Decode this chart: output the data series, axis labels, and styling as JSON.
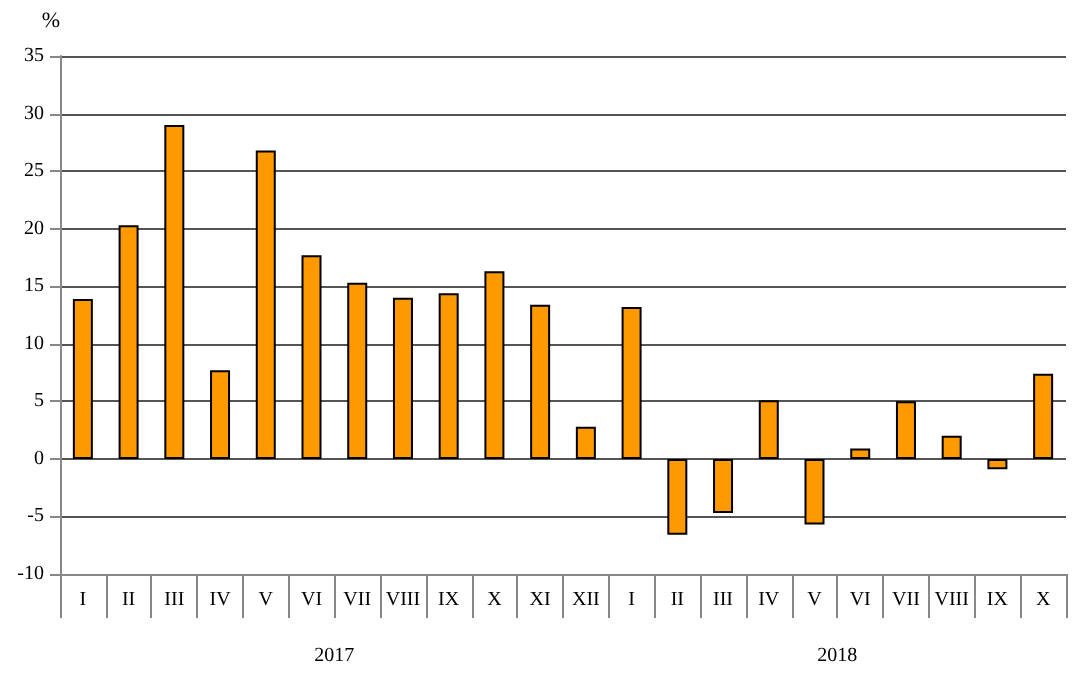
{
  "chart_data": {
    "type": "bar",
    "ylabel": "%",
    "categories": [
      "I",
      "II",
      "III",
      "IV",
      "V",
      "VI",
      "VII",
      "VIII",
      "IX",
      "X",
      "XI",
      "XII",
      "I",
      "II",
      "III",
      "IV",
      "V",
      "VI",
      "VII",
      "VIII",
      "IX",
      "X"
    ],
    "values": [
      13.9,
      20.3,
      29.0,
      7.7,
      26.8,
      17.7,
      15.3,
      14.0,
      14.4,
      16.3,
      13.4,
      2.8,
      13.2,
      -6.6,
      -4.7,
      5.1,
      -5.7,
      0.9,
      5.0,
      2.0,
      -0.9,
      7.4
    ],
    "color": "#ff9900",
    "ylim": [
      -10,
      35
    ],
    "yticks": [
      -10,
      -5,
      0,
      5,
      10,
      15,
      20,
      25,
      30,
      35
    ],
    "grid": true,
    "annotations": [
      "2017",
      "2018"
    ]
  }
}
